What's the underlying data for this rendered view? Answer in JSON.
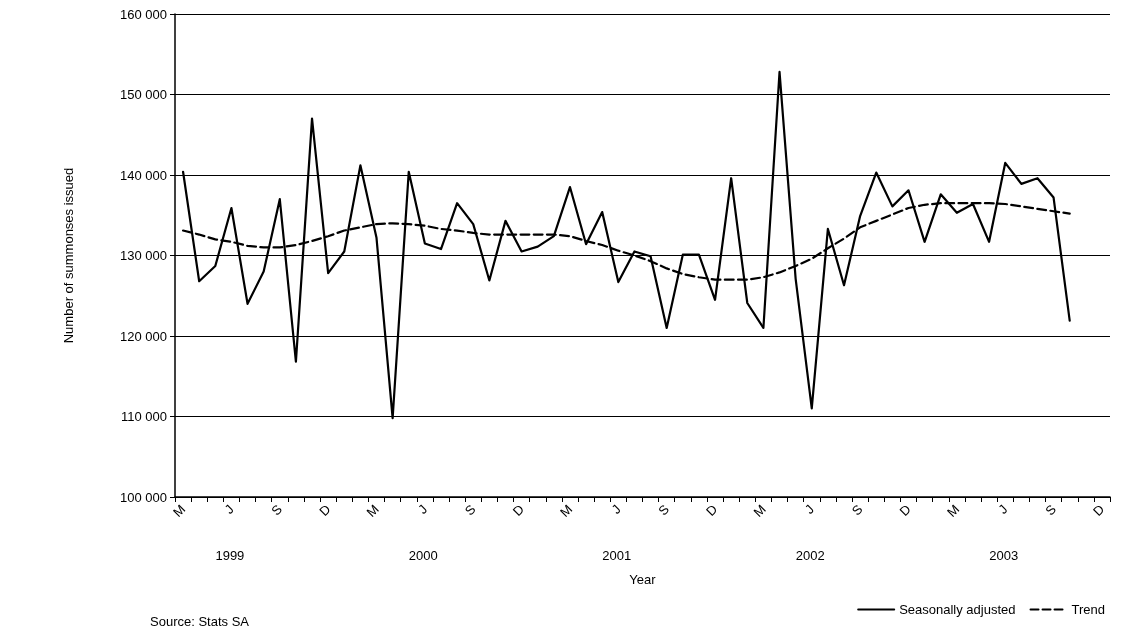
{
  "chart_data": {
    "type": "line",
    "xlabel": "Year",
    "ylabel": "Number of summonses issued",
    "categories": [
      "M",
      null,
      null,
      "J",
      null,
      null,
      "S",
      null,
      null,
      "D",
      null,
      null,
      "M",
      null,
      null,
      "J",
      null,
      null,
      "S",
      null,
      null,
      "D",
      null,
      null,
      "M",
      null,
      null,
      "J",
      null,
      null,
      "S",
      null,
      null,
      "D",
      null,
      null,
      "M",
      null,
      null,
      "J",
      null,
      null,
      "S",
      null,
      null,
      "D",
      null,
      null,
      "M",
      null,
      null,
      "J",
      null,
      null,
      "S",
      null,
      null,
      "D"
    ],
    "series": [
      {
        "name": "Seasonally adjusted",
        "color": "#000000",
        "line_style": "solid",
        "values": [
          140400,
          126800,
          128700,
          135900,
          124000,
          128000,
          137000,
          116800,
          147000,
          127800,
          130500,
          141200,
          132200,
          109800,
          140400,
          131500,
          130800,
          136500,
          133900,
          126900,
          134300,
          130500,
          131100,
          132400,
          138500,
          131400,
          135400,
          126700,
          130500,
          129900,
          121000,
          130100,
          130100,
          124500,
          139600,
          124100,
          121000,
          152800,
          127100,
          111000,
          133300,
          126300,
          134900,
          140300,
          136100,
          138100,
          131700,
          137600,
          135300,
          136400,
          131700,
          141500,
          138900,
          139600,
          137200,
          121900,
          null,
          null
        ]
      },
      {
        "name": "Trend",
        "color": "#000000",
        "line_style": "dashed",
        "values": [
          133100,
          132600,
          132000,
          131700,
          131200,
          131000,
          131000,
          131300,
          131800,
          132400,
          133100,
          133500,
          133900,
          134000,
          133900,
          133700,
          133300,
          133100,
          132800,
          132600,
          132600,
          132600,
          132600,
          132600,
          132400,
          131800,
          131300,
          130600,
          130000,
          129300,
          128400,
          127700,
          127300,
          127000,
          127000,
          127000,
          127300,
          127900,
          128700,
          129600,
          130900,
          132100,
          133500,
          134300,
          135100,
          135900,
          136300,
          136500,
          136500,
          136500,
          136500,
          136400,
          136100,
          135800,
          135500,
          135200,
          null,
          null
        ]
      }
    ],
    "ylim": [
      100000,
      160000
    ],
    "yticks": [
      {
        "value": 100000,
        "label": "100 000"
      },
      {
        "value": 110000,
        "label": "110 000"
      },
      {
        "value": 120000,
        "label": "120 000"
      },
      {
        "value": 130000,
        "label": "130 000"
      },
      {
        "value": 140000,
        "label": "140 000"
      },
      {
        "value": 150000,
        "label": "150 000"
      },
      {
        "value": 160000,
        "label": "160 000"
      }
    ],
    "grid": "y",
    "legend": "bottom right",
    "marker": "none",
    "annotations": [
      "1999",
      "2000",
      "2001",
      "2002",
      "2003",
      "Source: Stats SA"
    ]
  }
}
